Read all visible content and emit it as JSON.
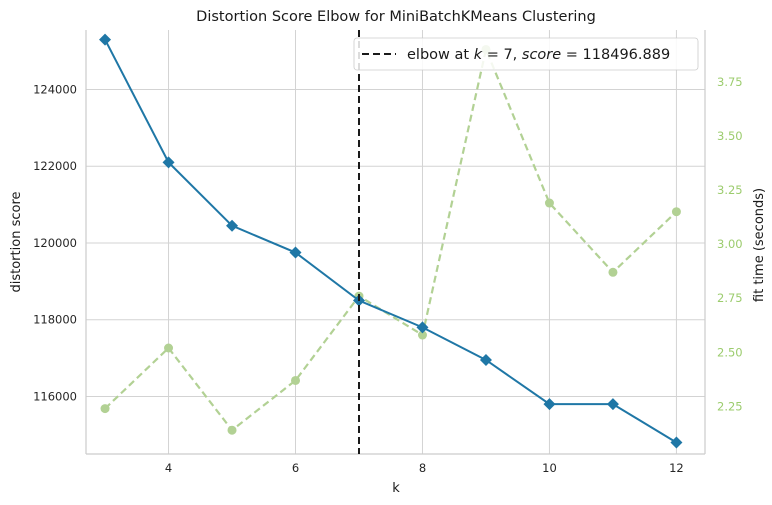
{
  "chart_data": {
    "type": "line",
    "title": "Distortion Score Elbow for MiniBatchKMeans Clustering",
    "xlabel": "k",
    "ylabel": "distortion score",
    "y2label": "fit time (seconds)",
    "x": [
      3,
      4,
      5,
      6,
      7,
      8,
      9,
      10,
      11,
      12
    ],
    "xlim": [
      2.7,
      12.45
    ],
    "ylim": [
      114500,
      125550
    ],
    "y2lim": [
      2.03,
      3.99
    ],
    "xticks": [
      "4",
      "6",
      "8",
      "10",
      "12"
    ],
    "yticks": [
      "116000",
      "118000",
      "120000",
      "122000",
      "124000"
    ],
    "y2ticks": [
      "2.25",
      "2.50",
      "2.75",
      "3.00",
      "3.25",
      "3.50",
      "3.75"
    ],
    "grid": true,
    "series": [
      {
        "axis": "left",
        "color": "#1f77a6",
        "marker": "diamond",
        "values": [
          125300,
          122100,
          120450,
          119750,
          118500,
          117800,
          116950,
          115800,
          115800,
          114800
        ]
      },
      {
        "axis": "right",
        "color": "#b2d194",
        "marker": "circle",
        "dashed": true,
        "values": [
          2.24,
          2.52,
          2.14,
          2.37,
          2.76,
          2.58,
          3.9,
          3.19,
          2.87,
          3.15
        ]
      }
    ],
    "elbow": {
      "x": 7,
      "legend_prefix": "elbow at ",
      "legend_k": "k",
      "legend_mid": " = 7, ",
      "legend_score": "score",
      "legend_suffix": " = 118496.889"
    },
    "legend_position": "top-right"
  }
}
